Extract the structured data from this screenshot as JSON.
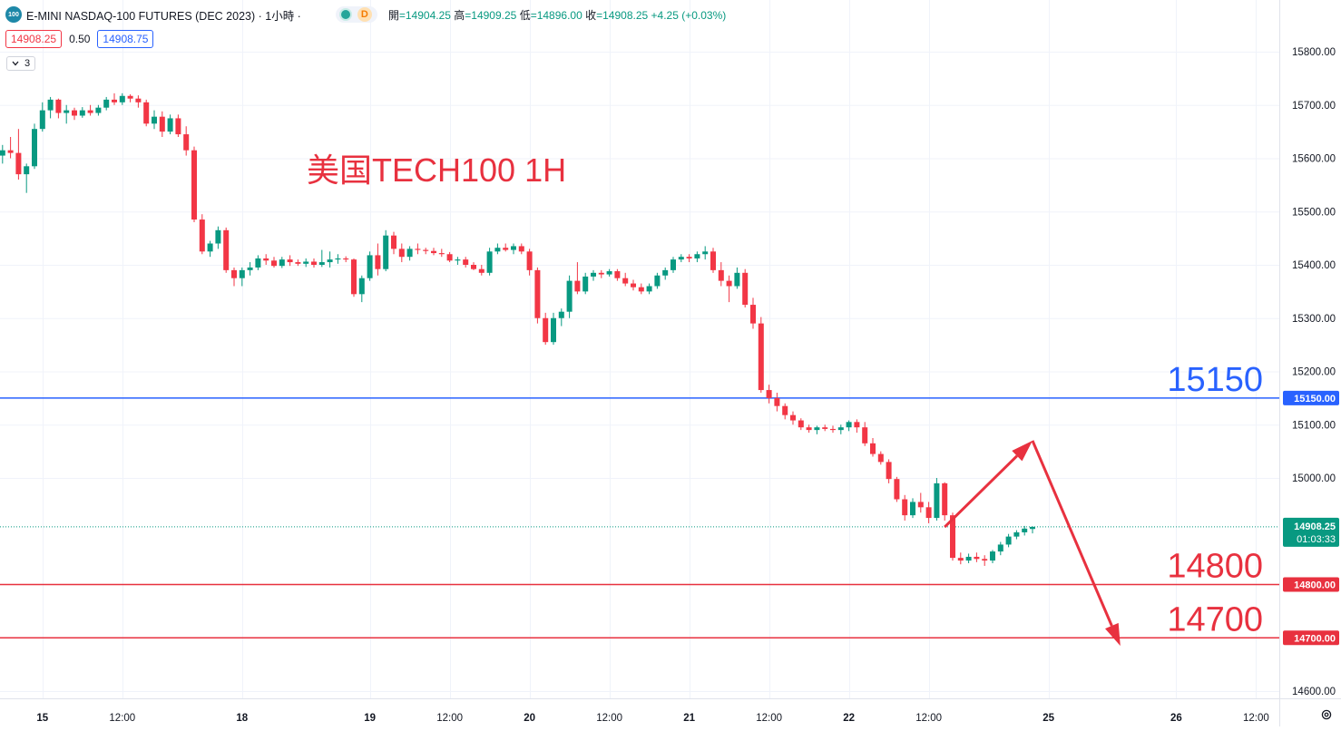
{
  "header": {
    "logo_text": "100",
    "title": "E-MINI NASDAQ-100 FUTURES (DEC 2023) · 1小時 ·",
    "status_letter": "D",
    "ohlc": {
      "open_label": "開",
      "open": "=14904.25",
      "high_label": "高",
      "high": "=14909.25",
      "low_label": "低",
      "low": "=14896.00",
      "close_label": "收",
      "close": "=14908.25",
      "change": "+4.25 (+0.03%)"
    }
  },
  "price_bar": {
    "sell": "14908.25",
    "spread": "0.50",
    "buy": "14908.75"
  },
  "collapse": {
    "count": "3"
  },
  "colors": {
    "up": "#089981",
    "down": "#f23645",
    "blue_line": "#2962ff",
    "red_line": "#e8313f",
    "annotation_red": "#e8313f",
    "grid": "#f0f3fa",
    "axis_text": "#131722"
  },
  "chart_data": {
    "type": "candlestick",
    "title": "美国TECH100 1H",
    "ylim": [
      14570,
      15850
    ],
    "y_ticks": [
      15800,
      15700,
      15600,
      15500,
      15400,
      15300,
      15200,
      15100,
      15000,
      14600
    ],
    "y_tick_labels": [
      "15800.00",
      "15700.00",
      "15600.00",
      "15500.00",
      "15400.00",
      "15300.00",
      "15200.00",
      "15100.00",
      "15000.00",
      "14600.00"
    ],
    "x_ticks": [
      {
        "i": 6,
        "label": "15"
      },
      {
        "i": 16,
        "label": "12:00"
      },
      {
        "i": 31,
        "label": "18"
      },
      {
        "i": 47,
        "label": "19"
      },
      {
        "i": 57,
        "label": "12:00"
      },
      {
        "i": 67,
        "label": "20"
      },
      {
        "i": 77,
        "label": "12:00"
      },
      {
        "i": 87,
        "label": "21"
      },
      {
        "i": 97,
        "label": "12:00"
      },
      {
        "i": 107,
        "label": "22"
      },
      {
        "i": 117,
        "label": "12:00"
      },
      {
        "i": 132,
        "label": "25"
      },
      {
        "i": 148,
        "label": "26"
      },
      {
        "i": 158,
        "label": "12:00"
      }
    ],
    "horizontal_lines": [
      {
        "price": 15150,
        "label": "15150",
        "axis_label": "15150.00",
        "color": "#2962ff"
      },
      {
        "price": 14800,
        "label": "14800",
        "axis_label": "14800.00",
        "color": "#e8313f"
      },
      {
        "price": 14700,
        "label": "14700",
        "axis_label": "14700.00",
        "color": "#e8313f"
      }
    ],
    "last_price": {
      "price": 14908.25,
      "label": "14908.25",
      "countdown": "01:03:33",
      "color": "#089981"
    },
    "projection": [
      {
        "i": 119,
        "price": 14908
      },
      {
        "i": 130,
        "price": 15070
      },
      {
        "i": 141,
        "price": 14685
      }
    ],
    "candles": [
      [
        15595,
        15612,
        15585,
        15605
      ],
      [
        15605,
        15625,
        15590,
        15615
      ],
      [
        15615,
        15640,
        15600,
        15610
      ],
      [
        15610,
        15655,
        15560,
        15570
      ],
      [
        15570,
        15590,
        15535,
        15585
      ],
      [
        15585,
        15665,
        15580,
        15655
      ],
      [
        15655,
        15705,
        15650,
        15690
      ],
      [
        15690,
        15715,
        15675,
        15710
      ],
      [
        15710,
        15712,
        15675,
        15685
      ],
      [
        15685,
        15700,
        15665,
        15690
      ],
      [
        15690,
        15695,
        15672,
        15680
      ],
      [
        15680,
        15696,
        15676,
        15690
      ],
      [
        15690,
        15700,
        15680,
        15685
      ],
      [
        15685,
        15700,
        15680,
        15695
      ],
      [
        15695,
        15715,
        15690,
        15710
      ],
      [
        15710,
        15722,
        15700,
        15705
      ],
      [
        15705,
        15722,
        15700,
        15717
      ],
      [
        15717,
        15720,
        15705,
        15712
      ],
      [
        15712,
        15718,
        15695,
        15705
      ],
      [
        15705,
        15710,
        15660,
        15665
      ],
      [
        15665,
        15690,
        15655,
        15678
      ],
      [
        15678,
        15688,
        15640,
        15650
      ],
      [
        15650,
        15682,
        15645,
        15675
      ],
      [
        15675,
        15682,
        15640,
        15645
      ],
      [
        15645,
        15660,
        15605,
        15615
      ],
      [
        15615,
        15622,
        15480,
        15485
      ],
      [
        15485,
        15495,
        15420,
        15425
      ],
      [
        15425,
        15445,
        15415,
        15440
      ],
      [
        15440,
        15472,
        15430,
        15465
      ],
      [
        15465,
        15470,
        15385,
        15390
      ],
      [
        15390,
        15395,
        15360,
        15375
      ],
      [
        15375,
        15395,
        15360,
        15390
      ],
      [
        15390,
        15405,
        15380,
        15395
      ],
      [
        15395,
        15418,
        15390,
        15412
      ],
      [
        15412,
        15420,
        15400,
        15408
      ],
      [
        15408,
        15415,
        15395,
        15398
      ],
      [
        15398,
        15415,
        15394,
        15410
      ],
      [
        15410,
        15418,
        15398,
        15405
      ],
      [
        15405,
        15410,
        15398,
        15402
      ],
      [
        15402,
        15412,
        15396,
        15406
      ],
      [
        15406,
        15412,
        15395,
        15400
      ],
      [
        15400,
        15428,
        15396,
        15405
      ],
      [
        15405,
        15425,
        15395,
        15410
      ],
      [
        15410,
        15420,
        15402,
        15412
      ],
      [
        15412,
        15416,
        15405,
        15410
      ],
      [
        15410,
        15412,
        15340,
        15345
      ],
      [
        15345,
        15380,
        15330,
        15375
      ],
      [
        15375,
        15425,
        15370,
        15418
      ],
      [
        15418,
        15440,
        15380,
        15392
      ],
      [
        15392,
        15465,
        15388,
        15455
      ],
      [
        15455,
        15462,
        15420,
        15430
      ],
      [
        15430,
        15440,
        15405,
        15415
      ],
      [
        15415,
        15435,
        15408,
        15430
      ],
      [
        15430,
        15440,
        15420,
        15428
      ],
      [
        15428,
        15432,
        15420,
        15426
      ],
      [
        15426,
        15432,
        15418,
        15422
      ],
      [
        15422,
        15430,
        15415,
        15420
      ],
      [
        15420,
        15424,
        15405,
        15408
      ],
      [
        15408,
        15415,
        15400,
        15410
      ],
      [
        15410,
        15415,
        15395,
        15400
      ],
      [
        15400,
        15405,
        15390,
        15392
      ],
      [
        15392,
        15400,
        15380,
        15385
      ],
      [
        15385,
        15432,
        15380,
        15425
      ],
      [
        15425,
        15440,
        15420,
        15432
      ],
      [
        15432,
        15440,
        15425,
        15428
      ],
      [
        15428,
        15440,
        15420,
        15435
      ],
      [
        15435,
        15440,
        15420,
        15425
      ],
      [
        15425,
        15430,
        15380,
        15390
      ],
      [
        15390,
        15395,
        15290,
        15300
      ],
      [
        15300,
        15310,
        15250,
        15255
      ],
      [
        15255,
        15310,
        15250,
        15300
      ],
      [
        15300,
        15318,
        15285,
        15312
      ],
      [
        15312,
        15380,
        15300,
        15370
      ],
      [
        15370,
        15405,
        15345,
        15350
      ],
      [
        15350,
        15385,
        15345,
        15378
      ],
      [
        15378,
        15390,
        15370,
        15385
      ],
      [
        15385,
        15390,
        15375,
        15382
      ],
      [
        15382,
        15392,
        15378,
        15388
      ],
      [
        15388,
        15392,
        15370,
        15375
      ],
      [
        15375,
        15385,
        15360,
        15365
      ],
      [
        15365,
        15372,
        15352,
        15358
      ],
      [
        15358,
        15365,
        15345,
        15350
      ],
      [
        15350,
        15365,
        15345,
        15360
      ],
      [
        15360,
        15385,
        15355,
        15380
      ],
      [
        15380,
        15395,
        15372,
        15390
      ],
      [
        15390,
        15415,
        15385,
        15410
      ],
      [
        15410,
        15420,
        15405,
        15415
      ],
      [
        15415,
        15420,
        15405,
        15412
      ],
      [
        15412,
        15425,
        15405,
        15420
      ],
      [
        15420,
        15435,
        15410,
        15425
      ],
      [
        15425,
        15432,
        15385,
        15390
      ],
      [
        15390,
        15405,
        15360,
        15370
      ],
      [
        15370,
        15380,
        15330,
        15360
      ],
      [
        15360,
        15395,
        15355,
        15385
      ],
      [
        15385,
        15392,
        15320,
        15325
      ],
      [
        15325,
        15338,
        15280,
        15290
      ],
      [
        15290,
        15302,
        15160,
        15165
      ],
      [
        15165,
        15175,
        15140,
        15150
      ],
      [
        15150,
        15160,
        15125,
        15135
      ],
      [
        15135,
        15140,
        15110,
        15118
      ],
      [
        15118,
        15125,
        15100,
        15108
      ],
      [
        15108,
        15112,
        15090,
        15095
      ],
      [
        15095,
        15100,
        15085,
        15090
      ],
      [
        15090,
        15098,
        15082,
        15095
      ],
      [
        15095,
        15100,
        15088,
        15092
      ],
      [
        15092,
        15098,
        15085,
        15090
      ],
      [
        15090,
        15100,
        15082,
        15095
      ],
      [
        15095,
        15108,
        15088,
        15105
      ],
      [
        15105,
        15110,
        15085,
        15095
      ],
      [
        15095,
        15105,
        15060,
        15065
      ],
      [
        15065,
        15075,
        15040,
        15045
      ],
      [
        15045,
        15050,
        15025,
        15030
      ],
      [
        15030,
        15035,
        14990,
        14998
      ],
      [
        14998,
        15002,
        14955,
        14960
      ],
      [
        14960,
        14968,
        14920,
        14930
      ],
      [
        14930,
        14962,
        14925,
        14955
      ],
      [
        14955,
        14972,
        14935,
        14945
      ],
      [
        14945,
        14955,
        14915,
        14925
      ],
      [
        14925,
        15000,
        14920,
        14990
      ],
      [
        14990,
        14992,
        14920,
        14930
      ],
      [
        14930,
        14935,
        14845,
        14850
      ],
      [
        14850,
        14860,
        14838,
        14845
      ],
      [
        14845,
        14858,
        14840,
        14852
      ],
      [
        14852,
        14860,
        14842,
        14848
      ],
      [
        14848,
        14855,
        14835,
        14845
      ],
      [
        14845,
        14865,
        14840,
        14862
      ],
      [
        14862,
        14880,
        14855,
        14875
      ],
      [
        14875,
        14895,
        14870,
        14890
      ],
      [
        14890,
        14902,
        14885,
        14898
      ],
      [
        14898,
        14910,
        14892,
        14905
      ],
      [
        14904.25,
        14909.25,
        14896,
        14908.25
      ]
    ]
  }
}
